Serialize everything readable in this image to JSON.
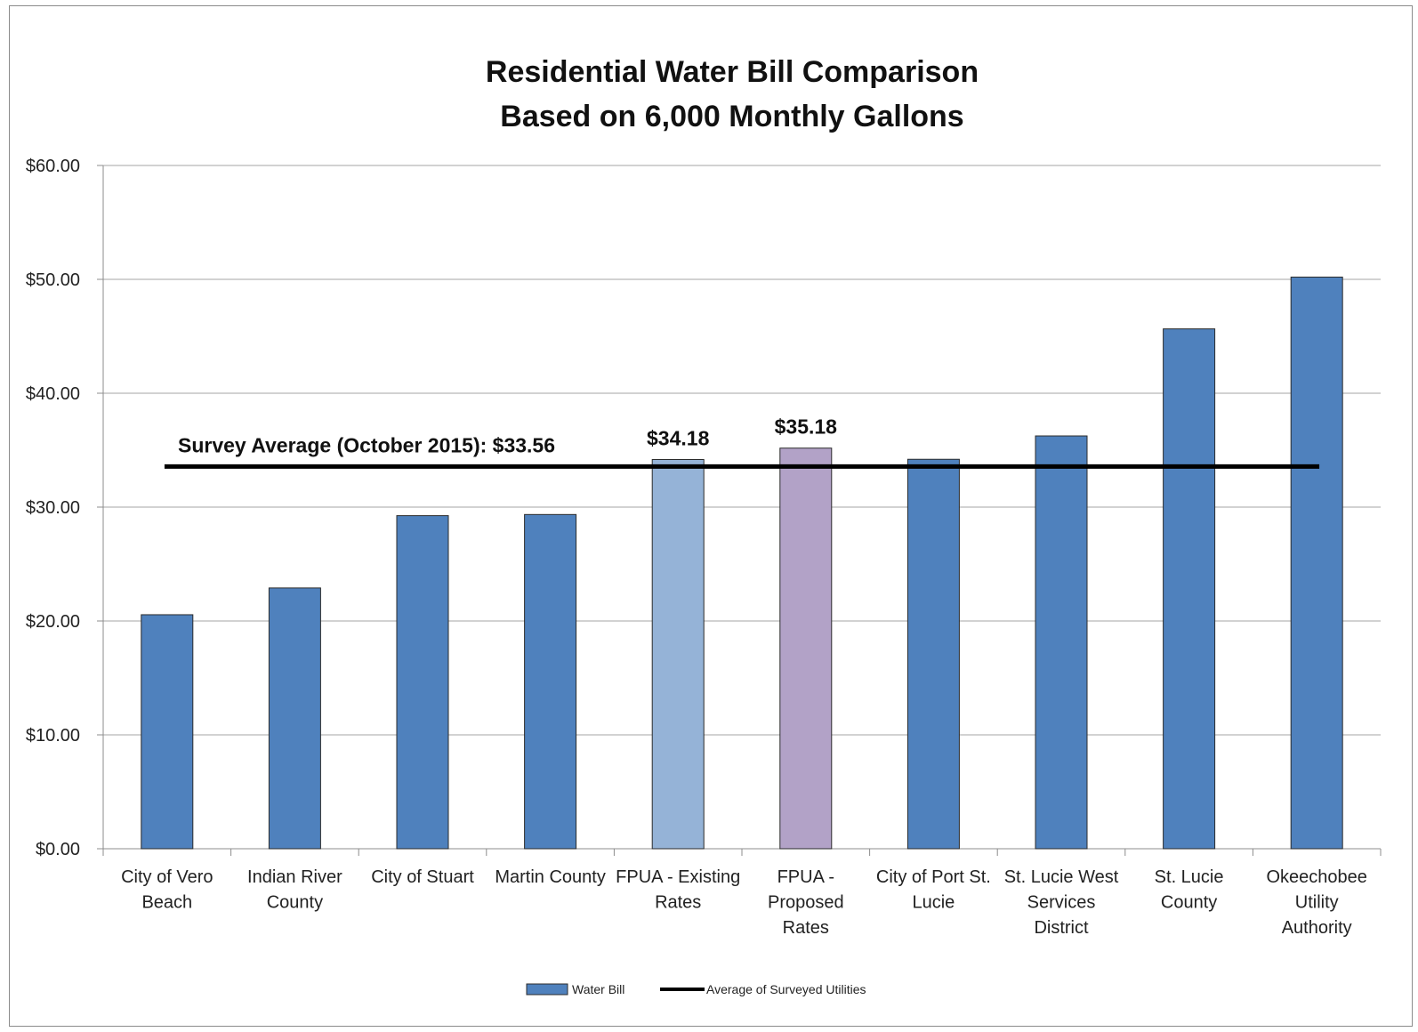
{
  "chart_data": {
    "type": "bar",
    "title_lines": [
      "Residential Water Bill Comparison",
      "Based on 6,000 Monthly Gallons"
    ],
    "categories": [
      [
        "City of Vero",
        "Beach"
      ],
      [
        "Indian River",
        "County"
      ],
      [
        "City of Stuart"
      ],
      [
        "Martin County"
      ],
      [
        "FPUA - Existing",
        "Rates"
      ],
      [
        "FPUA -",
        "Proposed",
        "Rates"
      ],
      [
        "City of Port St.",
        "Lucie"
      ],
      [
        "St. Lucie West",
        "Services",
        "District"
      ],
      [
        "St. Lucie",
        "County"
      ],
      [
        "Okeechobee",
        "Utility",
        "Authority"
      ]
    ],
    "series": [
      {
        "name": "Water Bill",
        "values": [
          20.55,
          22.9,
          29.25,
          29.35,
          34.18,
          35.18,
          34.2,
          36.25,
          45.65,
          50.2
        ],
        "colors": [
          "#4f81bd",
          "#4f81bd",
          "#4f81bd",
          "#4f81bd",
          "#95b3d7",
          "#b2a2c7",
          "#4f81bd",
          "#4f81bd",
          "#4f81bd",
          "#4f81bd"
        ]
      },
      {
        "name": "Average of Surveyed Utilities",
        "type": "line",
        "value": 33.56,
        "color": "#000000"
      }
    ],
    "data_labels": [
      {
        "index": 4,
        "text": "$34.18"
      },
      {
        "index": 5,
        "text": "$35.18"
      }
    ],
    "annotation": "Survey Average (October 2015): $33.56",
    "y_ticks": [
      "$0.00",
      "$10.00",
      "$20.00",
      "$30.00",
      "$40.00",
      "$50.00",
      "$60.00"
    ],
    "ylim": [
      0,
      60
    ],
    "grid": true,
    "legend_position": "bottom"
  }
}
